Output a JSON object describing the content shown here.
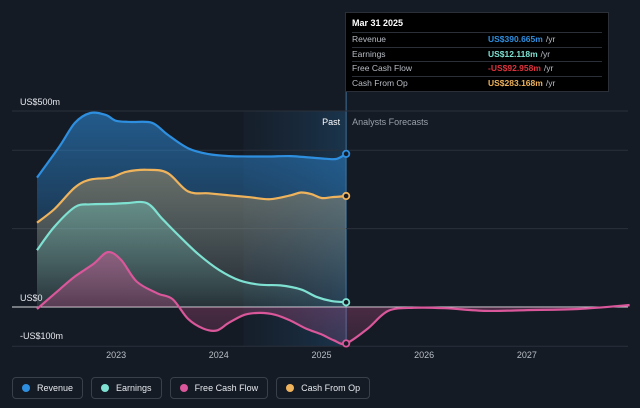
{
  "chart_data": {
    "type": "area",
    "x_unit": "year",
    "y_unit": "US$ millions",
    "ylim": [
      -100,
      500
    ],
    "y_ticks": [
      {
        "value": 500,
        "label": "US$500m"
      },
      {
        "value": 0,
        "label": "US$0"
      },
      {
        "value": -100,
        "label": "-US$100m"
      }
    ],
    "x_ticks": [
      {
        "value": 2023,
        "label": "2023"
      },
      {
        "value": 2024,
        "label": "2024"
      },
      {
        "value": 2025,
        "label": "2025"
      },
      {
        "value": 2026,
        "label": "2026"
      },
      {
        "value": 2027,
        "label": "2027"
      }
    ],
    "past_label": "Past",
    "forecast_label": "Analysts Forecasts",
    "past_end": 2025.24,
    "highlight_start": 2024.24,
    "series": [
      {
        "name": "Revenue",
        "color": "#2e8fe0",
        "points": [
          [
            2022.23,
            330
          ],
          [
            2022.45,
            410
          ],
          [
            2022.6,
            470
          ],
          [
            2022.75,
            495
          ],
          [
            2022.9,
            490
          ],
          [
            2023.0,
            475
          ],
          [
            2023.15,
            472
          ],
          [
            2023.35,
            470
          ],
          [
            2023.5,
            440
          ],
          [
            2023.7,
            405
          ],
          [
            2023.9,
            390
          ],
          [
            2024.1,
            385
          ],
          [
            2024.3,
            384
          ],
          [
            2024.5,
            384
          ],
          [
            2024.7,
            385
          ],
          [
            2024.9,
            381
          ],
          [
            2025.05,
            378
          ],
          [
            2025.15,
            378
          ],
          [
            2025.24,
            390.665
          ]
        ]
      },
      {
        "name": "Cash From Op",
        "color": "#efb35c",
        "points": [
          [
            2022.23,
            215
          ],
          [
            2022.4,
            250
          ],
          [
            2022.6,
            305
          ],
          [
            2022.75,
            325
          ],
          [
            2022.95,
            330
          ],
          [
            2023.1,
            345
          ],
          [
            2023.3,
            350
          ],
          [
            2023.5,
            342
          ],
          [
            2023.7,
            295
          ],
          [
            2023.9,
            290
          ],
          [
            2024.1,
            285
          ],
          [
            2024.3,
            280
          ],
          [
            2024.5,
            275
          ],
          [
            2024.7,
            285
          ],
          [
            2024.8,
            292
          ],
          [
            2024.9,
            288
          ],
          [
            2025.0,
            278
          ],
          [
            2025.1,
            280
          ],
          [
            2025.24,
            283.168
          ]
        ]
      },
      {
        "name": "Earnings",
        "color": "#7fe1d2",
        "points": [
          [
            2022.23,
            145
          ],
          [
            2022.4,
            205
          ],
          [
            2022.6,
            255
          ],
          [
            2022.75,
            262
          ],
          [
            2022.95,
            263
          ],
          [
            2023.1,
            265
          ],
          [
            2023.3,
            265
          ],
          [
            2023.45,
            225
          ],
          [
            2023.6,
            185
          ],
          [
            2023.8,
            135
          ],
          [
            2024.0,
            95
          ],
          [
            2024.2,
            68
          ],
          [
            2024.4,
            57
          ],
          [
            2024.6,
            55
          ],
          [
            2024.8,
            45
          ],
          [
            2024.95,
            26
          ],
          [
            2025.1,
            15
          ],
          [
            2025.24,
            12.118
          ]
        ]
      },
      {
        "name": "Free Cash Flow",
        "color": "#d9579a",
        "points": [
          [
            2022.23,
            -5
          ],
          [
            2022.45,
            45
          ],
          [
            2022.6,
            78
          ],
          [
            2022.78,
            110
          ],
          [
            2022.92,
            140
          ],
          [
            2023.05,
            120
          ],
          [
            2023.2,
            65
          ],
          [
            2023.4,
            35
          ],
          [
            2023.55,
            20
          ],
          [
            2023.7,
            -30
          ],
          [
            2023.85,
            -55
          ],
          [
            2023.98,
            -60
          ],
          [
            2024.1,
            -40
          ],
          [
            2024.25,
            -20
          ],
          [
            2024.4,
            -15
          ],
          [
            2024.55,
            -20
          ],
          [
            2024.7,
            -35
          ],
          [
            2024.85,
            -55
          ],
          [
            2025.0,
            -70
          ],
          [
            2025.12,
            -85
          ],
          [
            2025.24,
            -92.958
          ],
          [
            2025.45,
            -55
          ],
          [
            2025.65,
            -10
          ],
          [
            2025.9,
            -2
          ],
          [
            2026.2,
            -3
          ],
          [
            2026.6,
            -10
          ],
          [
            2027.0,
            -8
          ],
          [
            2027.5,
            -5
          ],
          [
            2028.0,
            5
          ]
        ]
      }
    ],
    "tooltip": {
      "date": "Mar 31 2025",
      "rows": [
        {
          "label": "Revenue",
          "value": "US$390.665m",
          "unit": "/yr",
          "color": "#2e8fe0"
        },
        {
          "label": "Earnings",
          "value": "US$12.118m",
          "unit": "/yr",
          "color": "#7fe1d2"
        },
        {
          "label": "Free Cash Flow",
          "value": "-US$92.958m",
          "unit": "/yr",
          "color": "#e0323c"
        },
        {
          "label": "Cash From Op",
          "value": "US$283.168m",
          "unit": "/yr",
          "color": "#efb35c"
        }
      ]
    },
    "legend": [
      {
        "label": "Revenue",
        "color": "#2e8fe0"
      },
      {
        "label": "Earnings",
        "color": "#7fe1d2"
      },
      {
        "label": "Free Cash Flow",
        "color": "#d9579a"
      },
      {
        "label": "Cash From Op",
        "color": "#efb35c"
      }
    ]
  }
}
